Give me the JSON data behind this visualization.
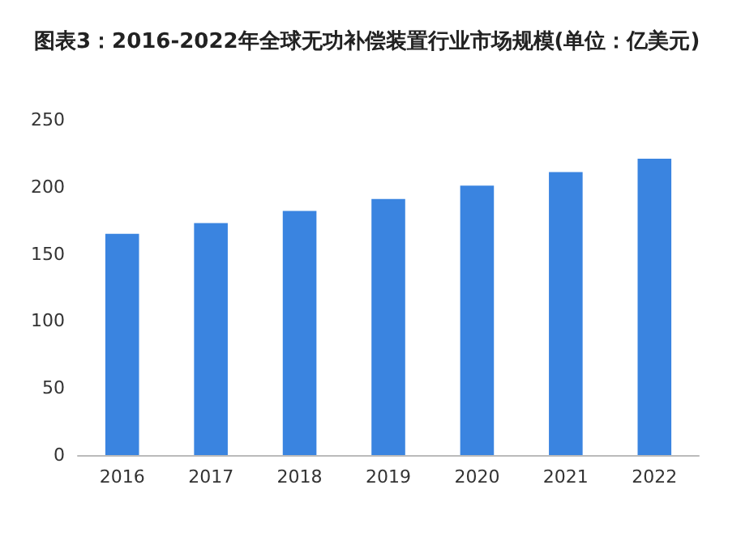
{
  "chart_data": {
    "type": "bar",
    "title": "图表3：2016-2022年全球无功补偿装置行业市场规模(单位：亿美元)",
    "categories": [
      "2016",
      "2017",
      "2018",
      "2019",
      "2020",
      "2021",
      "2022"
    ],
    "values": [
      165,
      173,
      182,
      191,
      201,
      211,
      221
    ],
    "color": "#3a84e0",
    "ylim": [
      0,
      250
    ],
    "yticks": [
      0,
      50,
      100,
      150,
      200,
      250
    ],
    "grid": false
  }
}
